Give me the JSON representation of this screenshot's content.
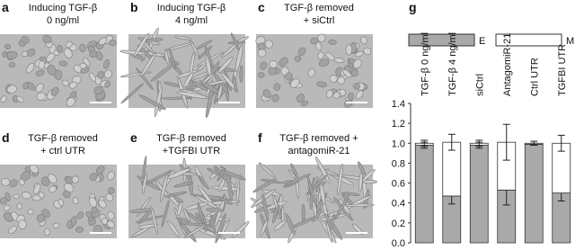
{
  "panels": [
    {
      "label": "a",
      "title": [
        "Inducing TGF-β",
        "0 ng/ml"
      ]
    },
    {
      "label": "b",
      "title": [
        "Inducing TGF-β",
        "4 ng/ml"
      ]
    },
    {
      "label": "c",
      "title": [
        "TGF-β removed",
        "+ siCtrl"
      ]
    },
    {
      "label": "d",
      "title": [
        "TGF-β removed",
        "+ ctrl UTR"
      ]
    },
    {
      "label": "e",
      "title": [
        "TGF-β removed",
        "+TGFBI UTR"
      ]
    },
    {
      "label": "f",
      "title": [
        "TGF-β removed +",
        "antagomiR-21"
      ]
    }
  ],
  "chart_data": {
    "type": "stacked-bar",
    "label": "g",
    "categories": [
      "TGF-β 0 ng/ml",
      "TGF-β 4 ng/ml",
      "siCtrl",
      "AntagomiR-21",
      "Ctrl UTR",
      "TGFBI UTR"
    ],
    "series": [
      {
        "name": "E",
        "color": "#a9a9a9",
        "values": [
          0.98,
          0.47,
          0.98,
          0.53,
          0.99,
          0.5
        ],
        "errors": [
          0.03,
          0.08,
          0.03,
          0.15,
          0.01,
          0.08
        ]
      },
      {
        "name": "M",
        "color": "#ffffff",
        "values": [
          0.02,
          0.54,
          0.02,
          0.48,
          0.01,
          0.5
        ],
        "errors": [
          0.03,
          0.08,
          0.03,
          0.18,
          0.02,
          0.08
        ]
      }
    ],
    "ylim": [
      0,
      1.4
    ],
    "yticks": [
      {
        "value": 0,
        "label": "0.0"
      },
      0.2,
      0.4,
      0.6,
      0.8,
      {
        "value": 1,
        "label": "1.0"
      },
      1.2,
      1.4
    ]
  }
}
